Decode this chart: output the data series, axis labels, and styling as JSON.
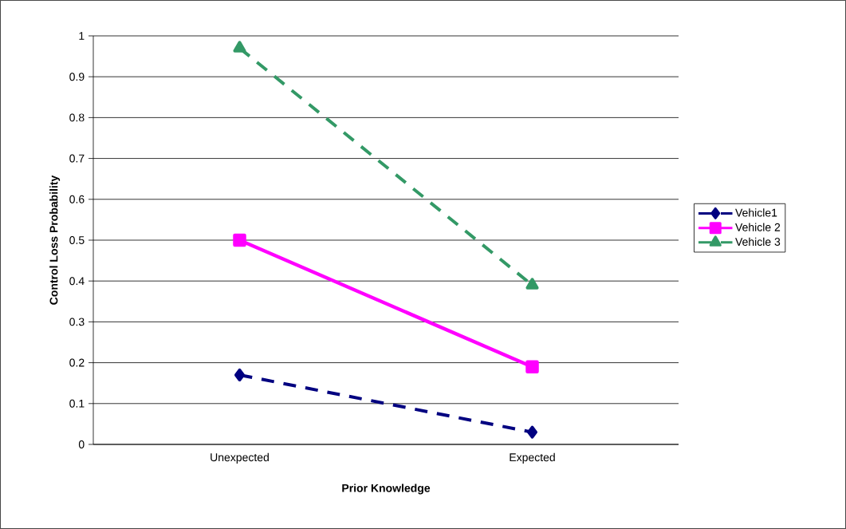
{
  "chart_data": {
    "type": "line",
    "xlabel": "Prior Knowledge",
    "ylabel": "Control Loss Probability",
    "categories": [
      "Unexpected",
      "Expected"
    ],
    "series": [
      {
        "name": "Vehicle1",
        "color": "#000080",
        "values": [
          0.17,
          0.03
        ],
        "marker": "diamond",
        "line_style": "dashed"
      },
      {
        "name": "Vehicle 2",
        "color": "#ff00ff",
        "values": [
          0.5,
          0.19
        ],
        "marker": "square",
        "line_style": "solid"
      },
      {
        "name": "Vehicle 3",
        "color": "#339966",
        "values": [
          0.97,
          0.39
        ],
        "marker": "triangle",
        "line_style": "dashed"
      }
    ],
    "ylim": [
      0,
      1
    ],
    "yticks": [
      0,
      0.1,
      0.2,
      0.3,
      0.4,
      0.5,
      0.6,
      0.7,
      0.8,
      0.9,
      1
    ],
    "grid": "y",
    "legend": "right"
  }
}
